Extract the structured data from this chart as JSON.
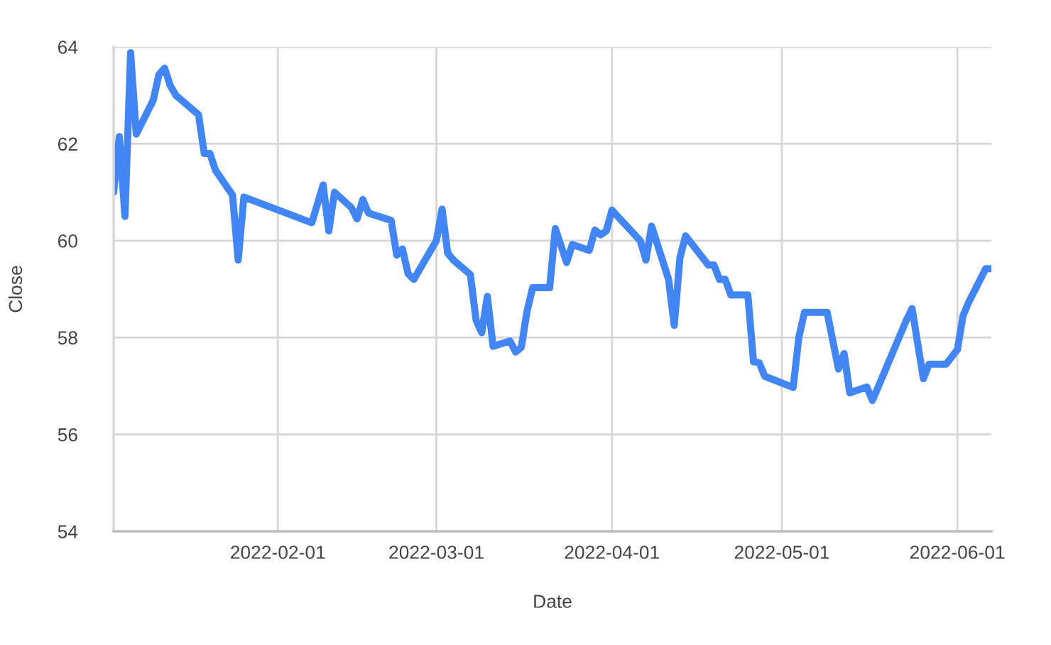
{
  "chart_data": {
    "type": "line",
    "xlabel": "Date",
    "ylabel": "Close",
    "x": [
      "2022-01-03",
      "2022-01-04",
      "2022-01-05",
      "2022-01-06",
      "2022-01-07",
      "2022-01-10",
      "2022-01-11",
      "2022-01-12",
      "2022-01-13",
      "2022-01-14",
      "2022-01-18",
      "2022-01-19",
      "2022-01-20",
      "2022-01-21",
      "2022-01-24",
      "2022-01-25",
      "2022-01-26",
      "2022-02-07",
      "2022-02-09",
      "2022-02-10",
      "2022-02-11",
      "2022-02-14",
      "2022-02-15",
      "2022-02-16",
      "2022-02-17",
      "2022-02-21",
      "2022-02-22",
      "2022-02-23",
      "2022-02-24",
      "2022-02-25",
      "2022-03-01",
      "2022-03-02",
      "2022-03-03",
      "2022-03-04",
      "2022-03-07",
      "2022-03-08",
      "2022-03-09",
      "2022-03-10",
      "2022-03-11",
      "2022-03-14",
      "2022-03-15",
      "2022-03-16",
      "2022-03-17",
      "2022-03-18",
      "2022-03-21",
      "2022-03-22",
      "2022-03-24",
      "2022-03-25",
      "2022-03-28",
      "2022-03-29",
      "2022-03-30",
      "2022-03-31",
      "2022-04-01",
      "2022-04-06",
      "2022-04-07",
      "2022-04-08",
      "2022-04-11",
      "2022-04-12",
      "2022-04-13",
      "2022-04-14",
      "2022-04-18",
      "2022-04-19",
      "2022-04-20",
      "2022-04-21",
      "2022-04-22",
      "2022-04-25",
      "2022-04-26",
      "2022-04-27",
      "2022-04-28",
      "2022-05-03",
      "2022-05-04",
      "2022-05-05",
      "2022-05-09",
      "2022-05-11",
      "2022-05-12",
      "2022-05-13",
      "2022-05-16",
      "2022-05-17",
      "2022-05-23",
      "2022-05-24",
      "2022-05-26",
      "2022-05-27",
      "2022-05-30",
      "2022-05-31",
      "2022-06-01",
      "2022-06-02",
      "2022-06-03",
      "2022-06-06",
      "2022-06-07"
    ],
    "series": [
      {
        "color": "#4285f4",
        "values": [
          61.0,
          62.15,
          60.5,
          63.88,
          62.2,
          62.9,
          63.43,
          63.56,
          63.2,
          63.0,
          62.6,
          61.8,
          61.8,
          61.45,
          60.94,
          59.6,
          60.9,
          60.37,
          61.15,
          60.2,
          61.0,
          60.68,
          60.45,
          60.85,
          60.57,
          60.42,
          59.7,
          59.83,
          59.32,
          59.2,
          60.0,
          60.65,
          59.74,
          59.6,
          59.3,
          58.36,
          58.1,
          58.85,
          57.82,
          57.93,
          57.7,
          57.8,
          58.54,
          59.03,
          59.03,
          60.25,
          59.55,
          59.92,
          59.8,
          60.22,
          60.12,
          60.2,
          60.63,
          60.0,
          59.6,
          60.3,
          59.2,
          58.25,
          59.64,
          60.1,
          59.5,
          59.5,
          59.2,
          59.2,
          58.88,
          58.88,
          57.5,
          57.48,
          57.2,
          56.97,
          58.0,
          58.52,
          58.52,
          57.35,
          57.67,
          56.86,
          56.98,
          56.7,
          58.36,
          58.6,
          57.15,
          57.45,
          57.45,
          57.6,
          57.75,
          58.45,
          58.73,
          59.42,
          59.42
        ]
      }
    ],
    "xlim": [
      "2022-01-03",
      "2022-06-07"
    ],
    "xticks": [
      "2022-02-01",
      "2022-03-01",
      "2022-04-01",
      "2022-05-01",
      "2022-06-01"
    ],
    "ylim": [
      54,
      64
    ],
    "yticks": [
      54,
      56,
      58,
      60,
      62,
      64
    ],
    "grid": true,
    "line_style": "solid"
  }
}
